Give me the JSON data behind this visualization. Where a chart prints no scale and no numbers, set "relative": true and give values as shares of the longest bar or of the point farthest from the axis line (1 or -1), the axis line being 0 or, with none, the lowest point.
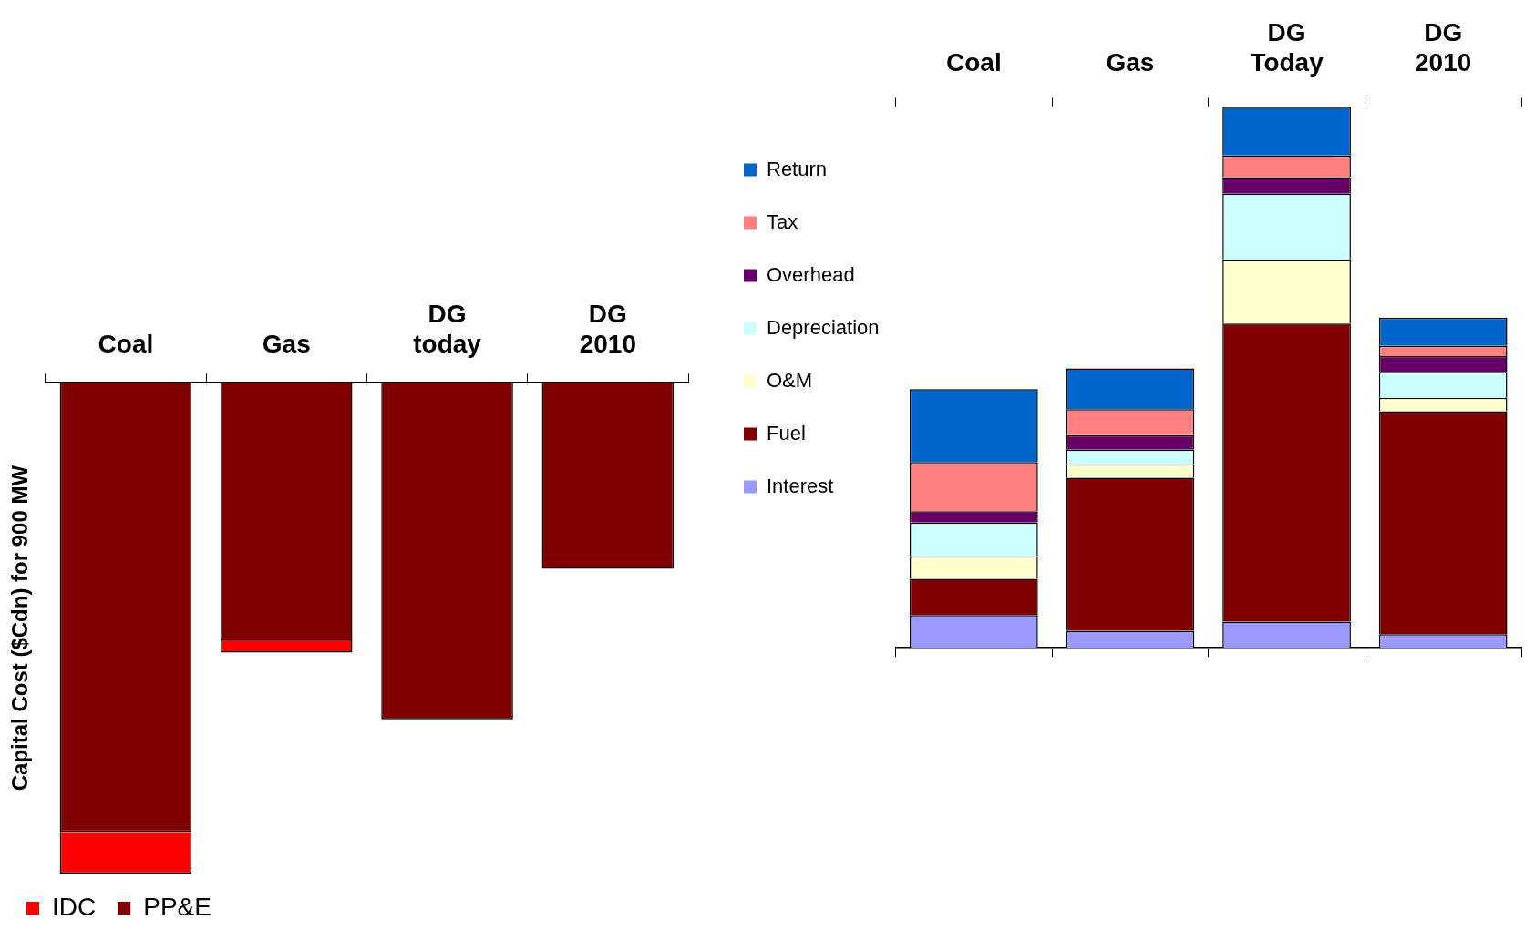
{
  "chart_data": [
    {
      "type": "bar",
      "stacked": true,
      "relative": true,
      "ylabel": "Capital Cost ($Cdn) for 900 MW",
      "legend": "bottom",
      "grid": false,
      "categories": [
        "Coal",
        "Gas",
        "DG today",
        "DG 2010"
      ],
      "series": [
        {
          "name": "PP&E",
          "color": "#800000",
          "values": [
            -0.915,
            -0.525,
            -0.686,
            -0.379
          ]
        },
        {
          "name": "IDC",
          "color": "#ff0000",
          "values": [
            -0.085,
            -0.025,
            0,
            0
          ]
        }
      ]
    },
    {
      "type": "bar",
      "stacked": true,
      "relative": true,
      "legend": "left",
      "grid": false,
      "categories": [
        "Coal",
        "Gas",
        "DG Today",
        "DG 2010"
      ],
      "series": [
        {
          "name": "Interest",
          "color": "#9999ff",
          "values": [
            0.06,
            0.031,
            0.048,
            0.025
          ]
        },
        {
          "name": "Fuel",
          "color": "#800000",
          "values": [
            0.067,
            0.283,
            0.551,
            0.412
          ]
        },
        {
          "name": "O&M",
          "color": "#ffffcc",
          "values": [
            0.042,
            0.025,
            0.119,
            0.025
          ]
        },
        {
          "name": "Depreciation",
          "color": "#ccffff",
          "values": [
            0.062,
            0.027,
            0.121,
            0.048
          ]
        },
        {
          "name": "Overhead",
          "color": "#660066",
          "values": [
            0.021,
            0.027,
            0.031,
            0.029
          ]
        },
        {
          "name": "Tax",
          "color": "#ff8080",
          "values": [
            0.091,
            0.048,
            0.04,
            0.019
          ]
        },
        {
          "name": "Return",
          "color": "#0066cc",
          "values": [
            0.135,
            0.075,
            0.09,
            0.052
          ]
        }
      ]
    }
  ]
}
